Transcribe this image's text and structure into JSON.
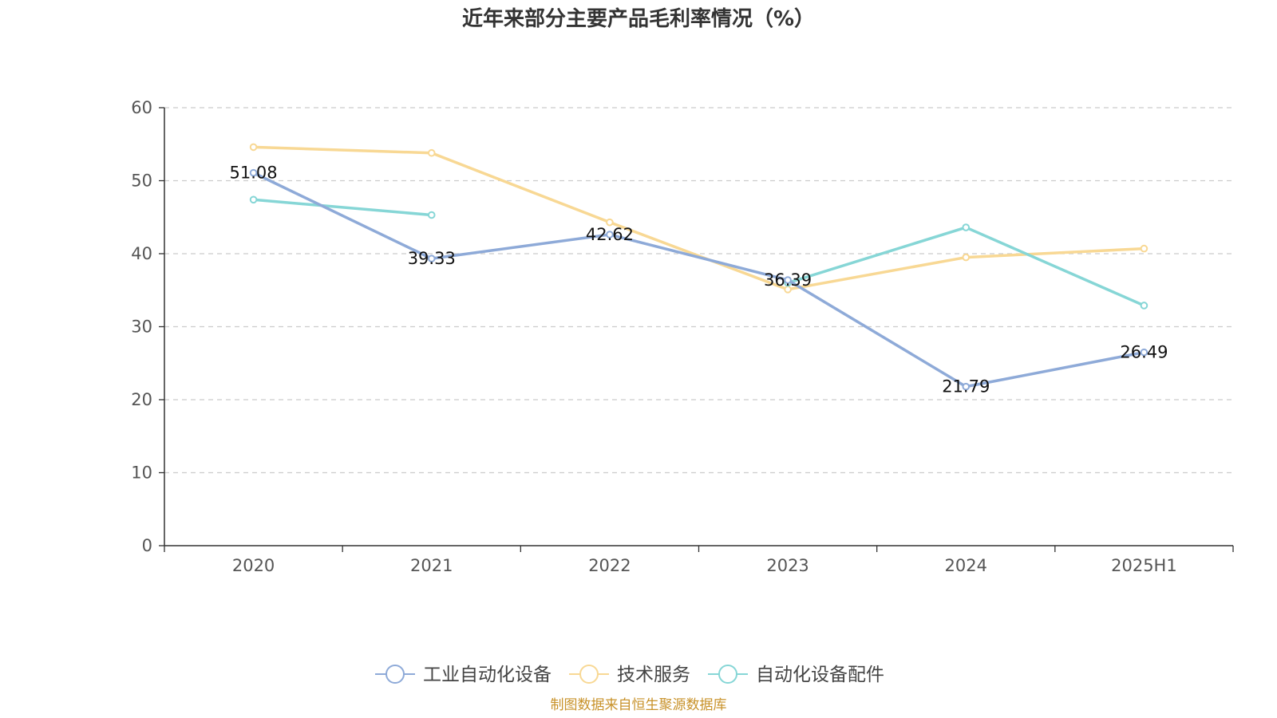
{
  "chart_data": {
    "type": "line",
    "title": "近年来部分主要产品毛利率情况（%）",
    "categories": [
      "2020",
      "2021",
      "2022",
      "2023",
      "2024",
      "2025H1"
    ],
    "ylim": [
      0,
      60
    ],
    "yticks": [
      0,
      10,
      20,
      30,
      40,
      50,
      60
    ],
    "grid": true,
    "legend_position": "bottom",
    "series": [
      {
        "name": "工业自动化设备",
        "color": "#8eaad8",
        "values": [
          51.08,
          39.33,
          42.62,
          36.39,
          21.79,
          26.49
        ],
        "labels": [
          "51.08",
          "39.33",
          "42.62",
          "36.39",
          "21.79",
          "26.49"
        ]
      },
      {
        "name": "技术服务",
        "color": "#f8d894",
        "values": [
          54.6,
          53.8,
          44.3,
          35.1,
          39.5,
          40.7
        ]
      },
      {
        "name": "自动化设备配件",
        "color": "#86d6d6",
        "values": [
          47.4,
          45.3,
          null,
          36.0,
          43.6,
          32.9
        ]
      }
    ],
    "source": "制图数据来自恒生聚源数据库"
  }
}
